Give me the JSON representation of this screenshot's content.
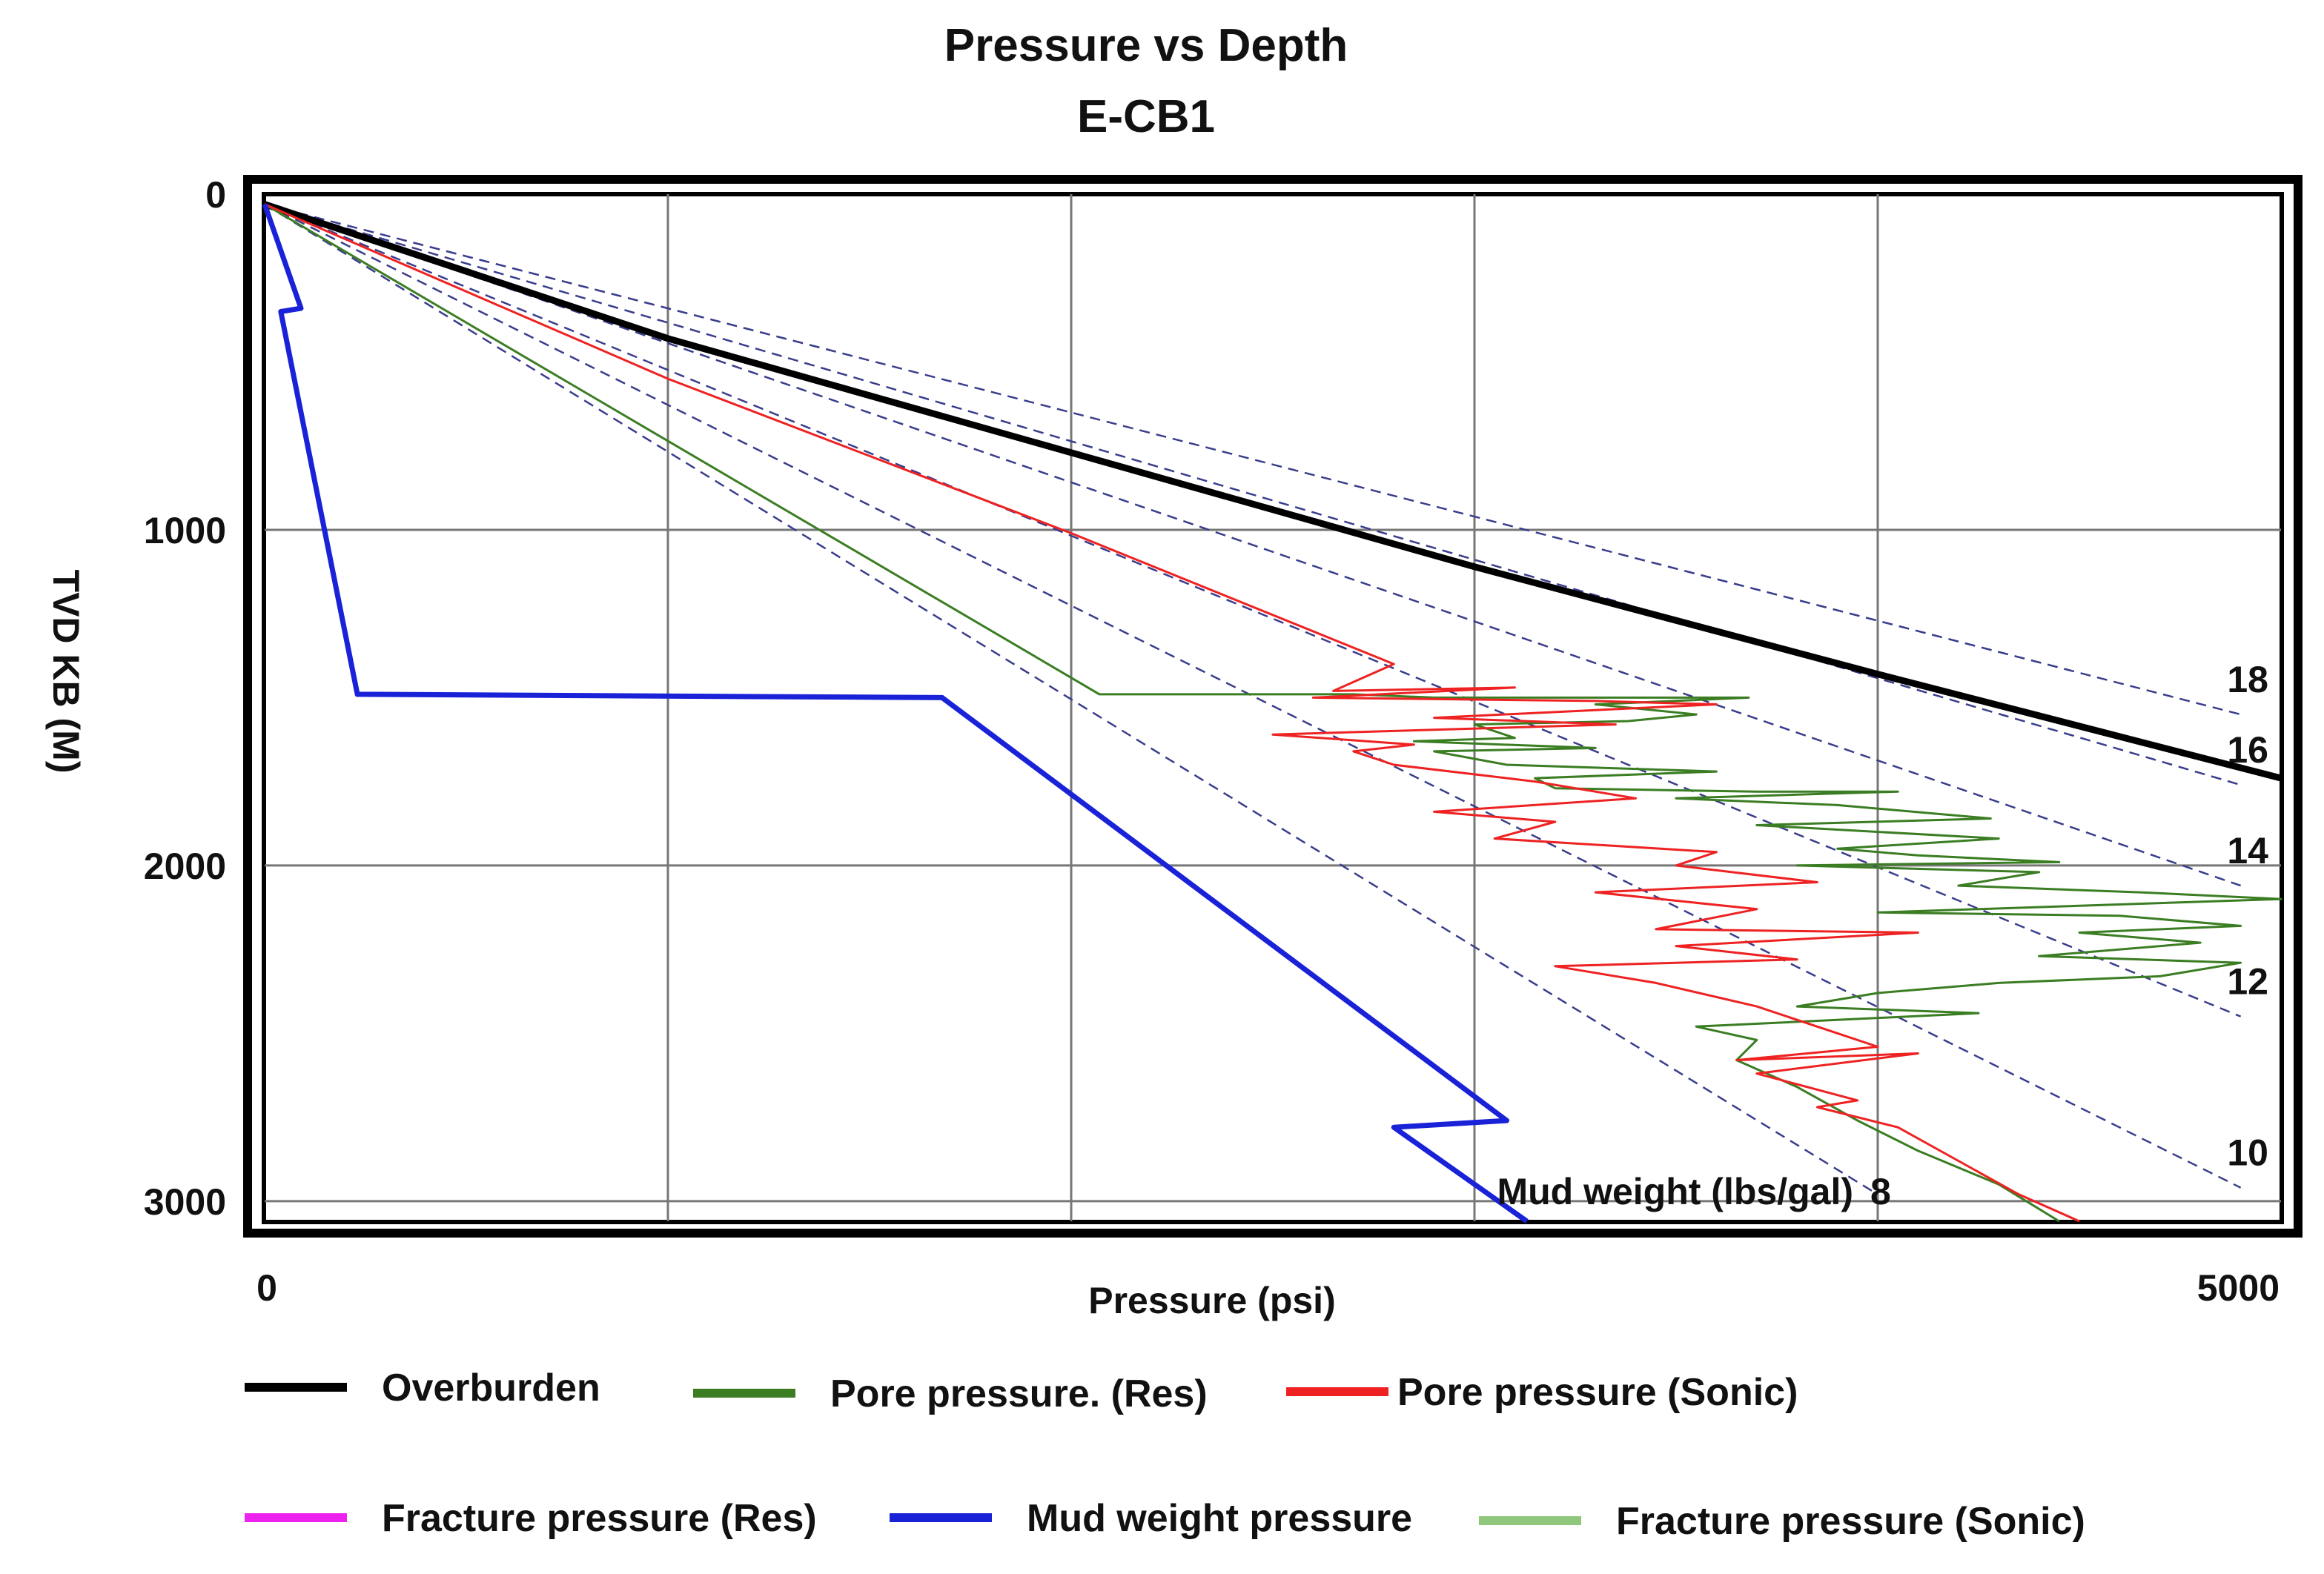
{
  "chart_data": {
    "type": "line",
    "title": "Pressure vs Depth",
    "subtitle": "E-CB1",
    "xlabel": "Pressure (psi)",
    "ylabel": "TVD KB (M)",
    "xlim": [
      0,
      5000
    ],
    "ylim": [
      3060,
      0
    ],
    "x_ticks": [
      "0",
      "5000"
    ],
    "y_ticks": [
      "0",
      "1000",
      "2000",
      "3000"
    ],
    "x_grid": [
      0,
      1000,
      2000,
      3000,
      4000,
      5000
    ],
    "y_grid": [
      0,
      1000,
      2000,
      3000
    ],
    "grid": true,
    "mud_weight_label": "Mud weight (lbs/gal)",
    "mud_weight_lines": [
      {
        "label": "8",
        "points": [
          [
            0,
            30
          ],
          [
            4000,
            2980
          ]
        ]
      },
      {
        "label": "10",
        "points": [
          [
            0,
            30
          ],
          [
            4900,
            2960
          ]
        ]
      },
      {
        "label": "12",
        "points": [
          [
            0,
            30
          ],
          [
            4900,
            2450
          ]
        ]
      },
      {
        "label": "14",
        "points": [
          [
            0,
            30
          ],
          [
            4900,
            2060
          ]
        ]
      },
      {
        "label": "16",
        "points": [
          [
            0,
            30
          ],
          [
            4900,
            1760
          ]
        ]
      },
      {
        "label": "18",
        "points": [
          [
            0,
            30
          ],
          [
            4900,
            1550
          ]
        ]
      }
    ],
    "series": [
      {
        "name": "Overburden",
        "color": "#000000",
        "points": [
          [
            0,
            30
          ],
          [
            1000,
            430
          ],
          [
            2000,
            770
          ],
          [
            3000,
            1110
          ],
          [
            4000,
            1430
          ],
          [
            5000,
            1740
          ]
        ]
      },
      {
        "name": "Pore pressure. (Res)",
        "color": "#3b7d23",
        "points": [
          [
            0,
            30
          ],
          [
            2070,
            1490
          ],
          [
            2400,
            1490
          ],
          [
            2700,
            1490
          ],
          [
            2900,
            1500
          ],
          [
            3680,
            1500
          ],
          [
            3300,
            1520
          ],
          [
            3550,
            1550
          ],
          [
            3380,
            1570
          ],
          [
            3000,
            1580
          ],
          [
            3100,
            1620
          ],
          [
            2850,
            1630
          ],
          [
            3300,
            1650
          ],
          [
            2900,
            1660
          ],
          [
            3080,
            1700
          ],
          [
            3600,
            1720
          ],
          [
            3150,
            1740
          ],
          [
            3200,
            1770
          ],
          [
            3700,
            1780
          ],
          [
            4050,
            1780
          ],
          [
            3500,
            1800
          ],
          [
            3900,
            1820
          ],
          [
            4280,
            1860
          ],
          [
            3700,
            1880
          ],
          [
            4300,
            1920
          ],
          [
            3900,
            1950
          ],
          [
            4100,
            1970
          ],
          [
            4450,
            1990
          ],
          [
            3800,
            2000
          ],
          [
            4400,
            2020
          ],
          [
            4200,
            2060
          ],
          [
            4650,
            2080
          ],
          [
            5000,
            2100
          ],
          [
            4000,
            2140
          ],
          [
            4600,
            2150
          ],
          [
            4900,
            2180
          ],
          [
            4500,
            2200
          ],
          [
            4800,
            2230
          ],
          [
            4400,
            2270
          ],
          [
            4900,
            2290
          ],
          [
            4700,
            2330
          ],
          [
            4300,
            2350
          ],
          [
            4000,
            2380
          ],
          [
            3800,
            2420
          ],
          [
            4250,
            2440
          ],
          [
            3550,
            2480
          ],
          [
            3700,
            2520
          ],
          [
            3650,
            2580
          ],
          [
            3800,
            2660
          ],
          [
            3950,
            2760
          ],
          [
            4100,
            2850
          ],
          [
            4300,
            2950
          ],
          [
            4450,
            3060
          ]
        ]
      },
      {
        "name": "Pore pressure (Sonic)",
        "color": "#ee2222",
        "points": [
          [
            0,
            30
          ],
          [
            1000,
            550
          ],
          [
            2000,
            1010
          ],
          [
            2800,
            1400
          ],
          [
            2650,
            1480
          ],
          [
            3100,
            1470
          ],
          [
            2600,
            1500
          ],
          [
            3300,
            1510
          ],
          [
            3600,
            1520
          ],
          [
            2900,
            1560
          ],
          [
            3350,
            1580
          ],
          [
            2500,
            1610
          ],
          [
            2850,
            1640
          ],
          [
            2700,
            1660
          ],
          [
            2800,
            1700
          ],
          [
            3150,
            1750
          ],
          [
            3400,
            1800
          ],
          [
            2900,
            1840
          ],
          [
            3200,
            1870
          ],
          [
            3050,
            1920
          ],
          [
            3600,
            1960
          ],
          [
            3500,
            2000
          ],
          [
            3850,
            2050
          ],
          [
            3300,
            2080
          ],
          [
            3700,
            2130
          ],
          [
            3450,
            2190
          ],
          [
            4100,
            2200
          ],
          [
            3500,
            2240
          ],
          [
            3800,
            2280
          ],
          [
            3200,
            2300
          ],
          [
            3450,
            2350
          ],
          [
            3700,
            2420
          ],
          [
            4000,
            2540
          ],
          [
            3650,
            2580
          ],
          [
            4100,
            2560
          ],
          [
            3700,
            2620
          ],
          [
            3950,
            2700
          ],
          [
            3850,
            2720
          ],
          [
            4050,
            2780
          ],
          [
            4200,
            2880
          ],
          [
            4350,
            2980
          ],
          [
            4500,
            3060
          ]
        ]
      },
      {
        "name": "Fracture pressure (Res)",
        "color": "#ee22ee",
        "points": []
      },
      {
        "name": "Mud weight pressure",
        "color": "#1a22d8",
        "points": [
          [
            0,
            30
          ],
          [
            90,
            340
          ],
          [
            40,
            350
          ],
          [
            230,
            1490
          ],
          [
            1680,
            1500
          ],
          [
            3080,
            2760
          ],
          [
            2800,
            2780
          ],
          [
            3130,
            3060
          ]
        ]
      },
      {
        "name": "Fracture pressure (Sonic)",
        "color": "#8fc87c",
        "points": []
      }
    ],
    "legend_position": "bottom"
  }
}
